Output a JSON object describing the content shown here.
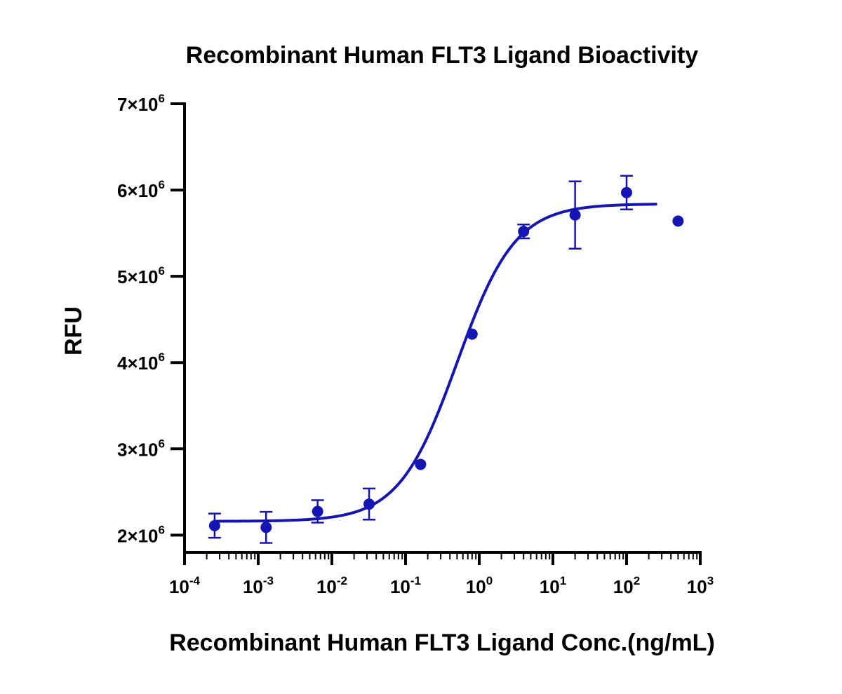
{
  "chart_data": {
    "type": "scatter",
    "title": "Recombinant Human FLT3 Ligand Bioactivity",
    "xlabel": "Recombinant Human FLT3 Ligand Conc.(ng/mL)",
    "ylabel": "RFU",
    "x_scale": "log",
    "xlim": [
      0.0001,
      1000
    ],
    "ylim": [
      1800000,
      7000000
    ],
    "x_ticks": [
      {
        "base": "10",
        "exp": "-4"
      },
      {
        "base": "10",
        "exp": "-3"
      },
      {
        "base": "10",
        "exp": "-2"
      },
      {
        "base": "10",
        "exp": "-1"
      },
      {
        "base": "10",
        "exp": "0"
      },
      {
        "base": "10",
        "exp": "1"
      },
      {
        "base": "10",
        "exp": "2"
      },
      {
        "base": "10",
        "exp": "3"
      }
    ],
    "y_ticks": [
      {
        "value": 2000000,
        "mant": "2×10",
        "exp": "6"
      },
      {
        "value": 3000000,
        "mant": "3×10",
        "exp": "6"
      },
      {
        "value": 4000000,
        "mant": "4×10",
        "exp": "6"
      },
      {
        "value": 5000000,
        "mant": "5×10",
        "exp": "6"
      },
      {
        "value": 6000000,
        "mant": "6×10",
        "exp": "6"
      },
      {
        "value": 7000000,
        "mant": "7×10",
        "exp": "6"
      }
    ],
    "grid": false,
    "color": "#1515b4",
    "points": [
      {
        "x": 0.000256,
        "y": 2110000,
        "err": 140000
      },
      {
        "x": 0.00128,
        "y": 2090000,
        "err": 180000
      },
      {
        "x": 0.0064,
        "y": 2275000,
        "err": 130000
      },
      {
        "x": 0.032,
        "y": 2360000,
        "err": 180000
      },
      {
        "x": 0.16,
        "y": 2820000,
        "err": 0
      },
      {
        "x": 0.8,
        "y": 4330000,
        "err": 0
      },
      {
        "x": 4.0,
        "y": 5520000,
        "err": 80000
      },
      {
        "x": 20.0,
        "y": 5710000,
        "err": 390000
      },
      {
        "x": 100.0,
        "y": 5970000,
        "err": 195000
      },
      {
        "x": 500.0,
        "y": 5640000,
        "err": 0
      }
    ],
    "fit": {
      "model": "4PL",
      "bottom": 2160000,
      "top": 5840000,
      "ec50": 0.5,
      "hill": 1.1,
      "x_range": [
        0.000256,
        250
      ]
    }
  }
}
